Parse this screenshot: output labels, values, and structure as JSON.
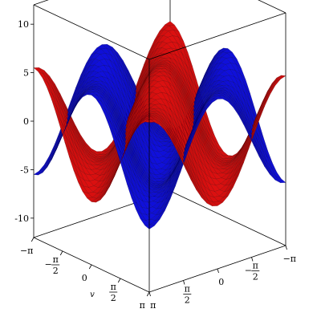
{
  "chart_data": {
    "type": "surface3d",
    "title": "",
    "xlabel": "v",
    "ylabel": "",
    "zlabel": "",
    "x_range": [
      -3.1416,
      3.1416
    ],
    "y_range": [
      -3.1416,
      3.1416
    ],
    "zlim": [
      -12,
      12
    ],
    "z_ticks": [
      {
        "value": 10,
        "label": "10"
      },
      {
        "value": 5,
        "label": "5"
      },
      {
        "value": 0,
        "label": "0"
      },
      {
        "value": -5,
        "label": "-5"
      },
      {
        "value": -10,
        "label": "-10"
      }
    ],
    "x_ticks": [
      {
        "value": -3.1416,
        "label": "−π",
        "frac": false
      },
      {
        "value": -1.5708,
        "label": "π|2",
        "frac": true,
        "neg": true
      },
      {
        "value": 0,
        "label": "0",
        "frac": false
      },
      {
        "value": 1.5708,
        "label": "π|2",
        "frac": true,
        "neg": false
      },
      {
        "value": 3.1416,
        "label": "π",
        "frac": false
      }
    ],
    "y_ticks": [
      {
        "value": -3.1416,
        "label": "−π",
        "frac": false
      },
      {
        "value": -1.5708,
        "label": "π|2",
        "frac": true,
        "neg": true
      },
      {
        "value": 0,
        "label": "0",
        "frac": false
      },
      {
        "value": 1.5708,
        "label": "π|2",
        "frac": true,
        "neg": false
      },
      {
        "value": 3.1416,
        "label": "π",
        "frac": false
      }
    ],
    "series": [
      {
        "color": "#ee1111",
        "mesh_color": "#6a0000",
        "amplitude": 10
      },
      {
        "color": "#1111ee",
        "mesh_color": "#000066",
        "amplitude": -10
      }
    ],
    "grid": true
  }
}
